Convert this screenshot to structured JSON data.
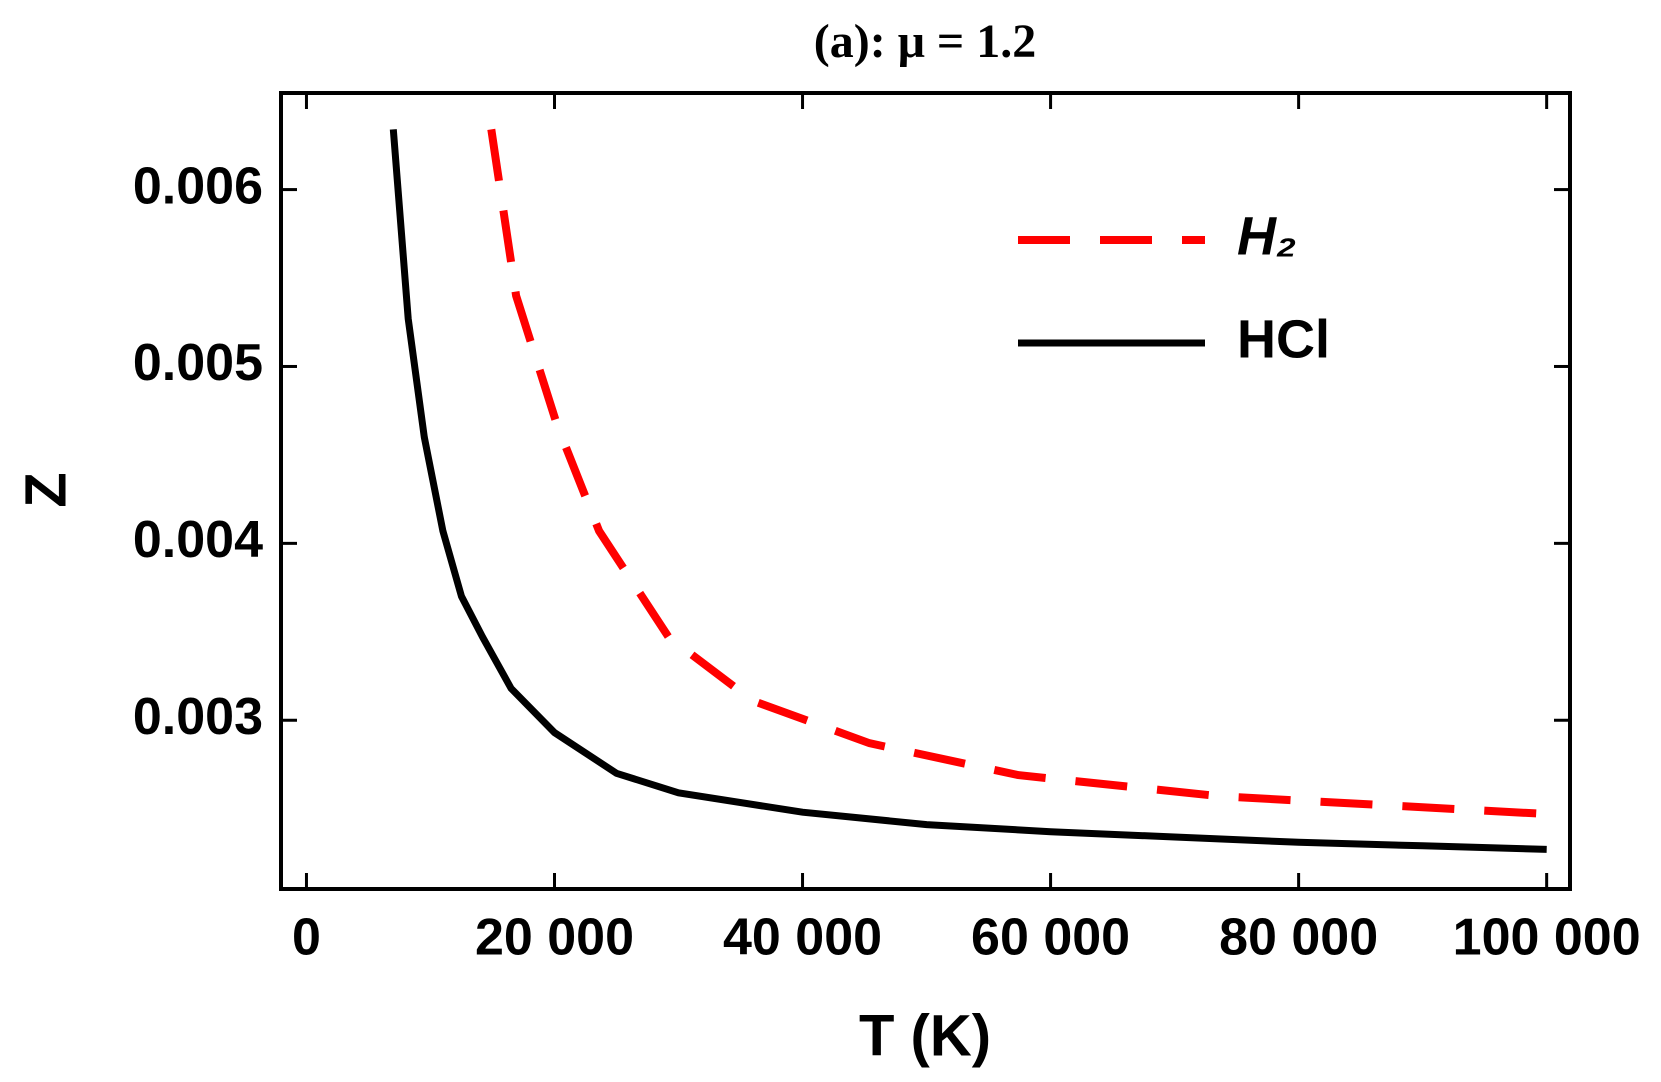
{
  "chart_data": {
    "type": "line",
    "title": "(a):  μ = 1.2",
    "xlabel": "T (K)",
    "ylabel": "Z",
    "xlim": [
      -2053,
      101882
    ],
    "ylim": [
      0.002046,
      0.006546
    ],
    "xticks": [
      0,
      {
        "value": 20000,
        "label": "20 000"
      },
      {
        "value": 40000,
        "label": "40 000"
      },
      {
        "value": 60000,
        "label": "60 000"
      },
      {
        "value": 80000,
        "label": "80 000"
      },
      {
        "value": 100000,
        "label": "100 000"
      }
    ],
    "yticks": [
      0.003,
      0.004,
      0.005,
      0.006
    ],
    "legend": "upper right",
    "series": [
      {
        "name": "H₂",
        "color": "#ff0000",
        "dashed": true,
        "x": [
          14900,
          16900,
          20200,
          23600,
          29200,
          36000,
          45400,
          57400,
          73700,
          100000
        ],
        "values": [
          0.00634,
          0.0054,
          0.00467,
          0.00407,
          0.00347,
          0.00311,
          0.00287,
          0.00269,
          0.00257,
          0.00247
        ]
      },
      {
        "name": "HCl",
        "color": "#000000",
        "dashed": false,
        "x": [
          7000,
          8200,
          9500,
          11000,
          12500,
          14200,
          16500,
          20000,
          25000,
          30000,
          40000,
          50000,
          60000,
          70000,
          80000,
          90000,
          100000
        ],
        "values": [
          0.00634,
          0.00527,
          0.0046,
          0.00407,
          0.0037,
          0.00347,
          0.00318,
          0.00293,
          0.0027,
          0.00259,
          0.00248,
          0.00241,
          0.00237,
          0.00234,
          0.00231,
          0.00229,
          0.00227
        ]
      }
    ]
  }
}
